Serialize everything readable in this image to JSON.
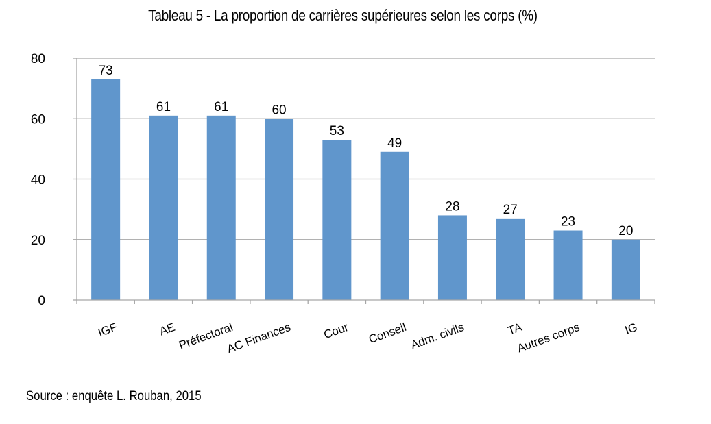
{
  "chart_data": {
    "type": "bar",
    "title": "Tableau 5 - La proportion de carrières supérieures selon les corps (%)",
    "xlabel": "",
    "ylabel": "",
    "categories": [
      "IGF",
      "AE",
      "Préfectoral",
      "AC Finances",
      "Cour",
      "Conseil",
      "Adm. civils",
      "TA",
      "Autres corps",
      "IG"
    ],
    "values": [
      73,
      61,
      61,
      60,
      53,
      49,
      28,
      27,
      23,
      20
    ],
    "data_labels": [
      "73",
      "61",
      "61",
      "60",
      "53",
      "49",
      "28",
      "27",
      "23",
      "20"
    ],
    "ylim": [
      0,
      80
    ],
    "yticks": [
      0,
      20,
      40,
      60,
      80
    ],
    "grid": true,
    "legend": "none",
    "bar_color": "#6096CC",
    "gridline_color": "#A6A6A6",
    "source": "Source : enquête L. Rouban, 2015"
  }
}
